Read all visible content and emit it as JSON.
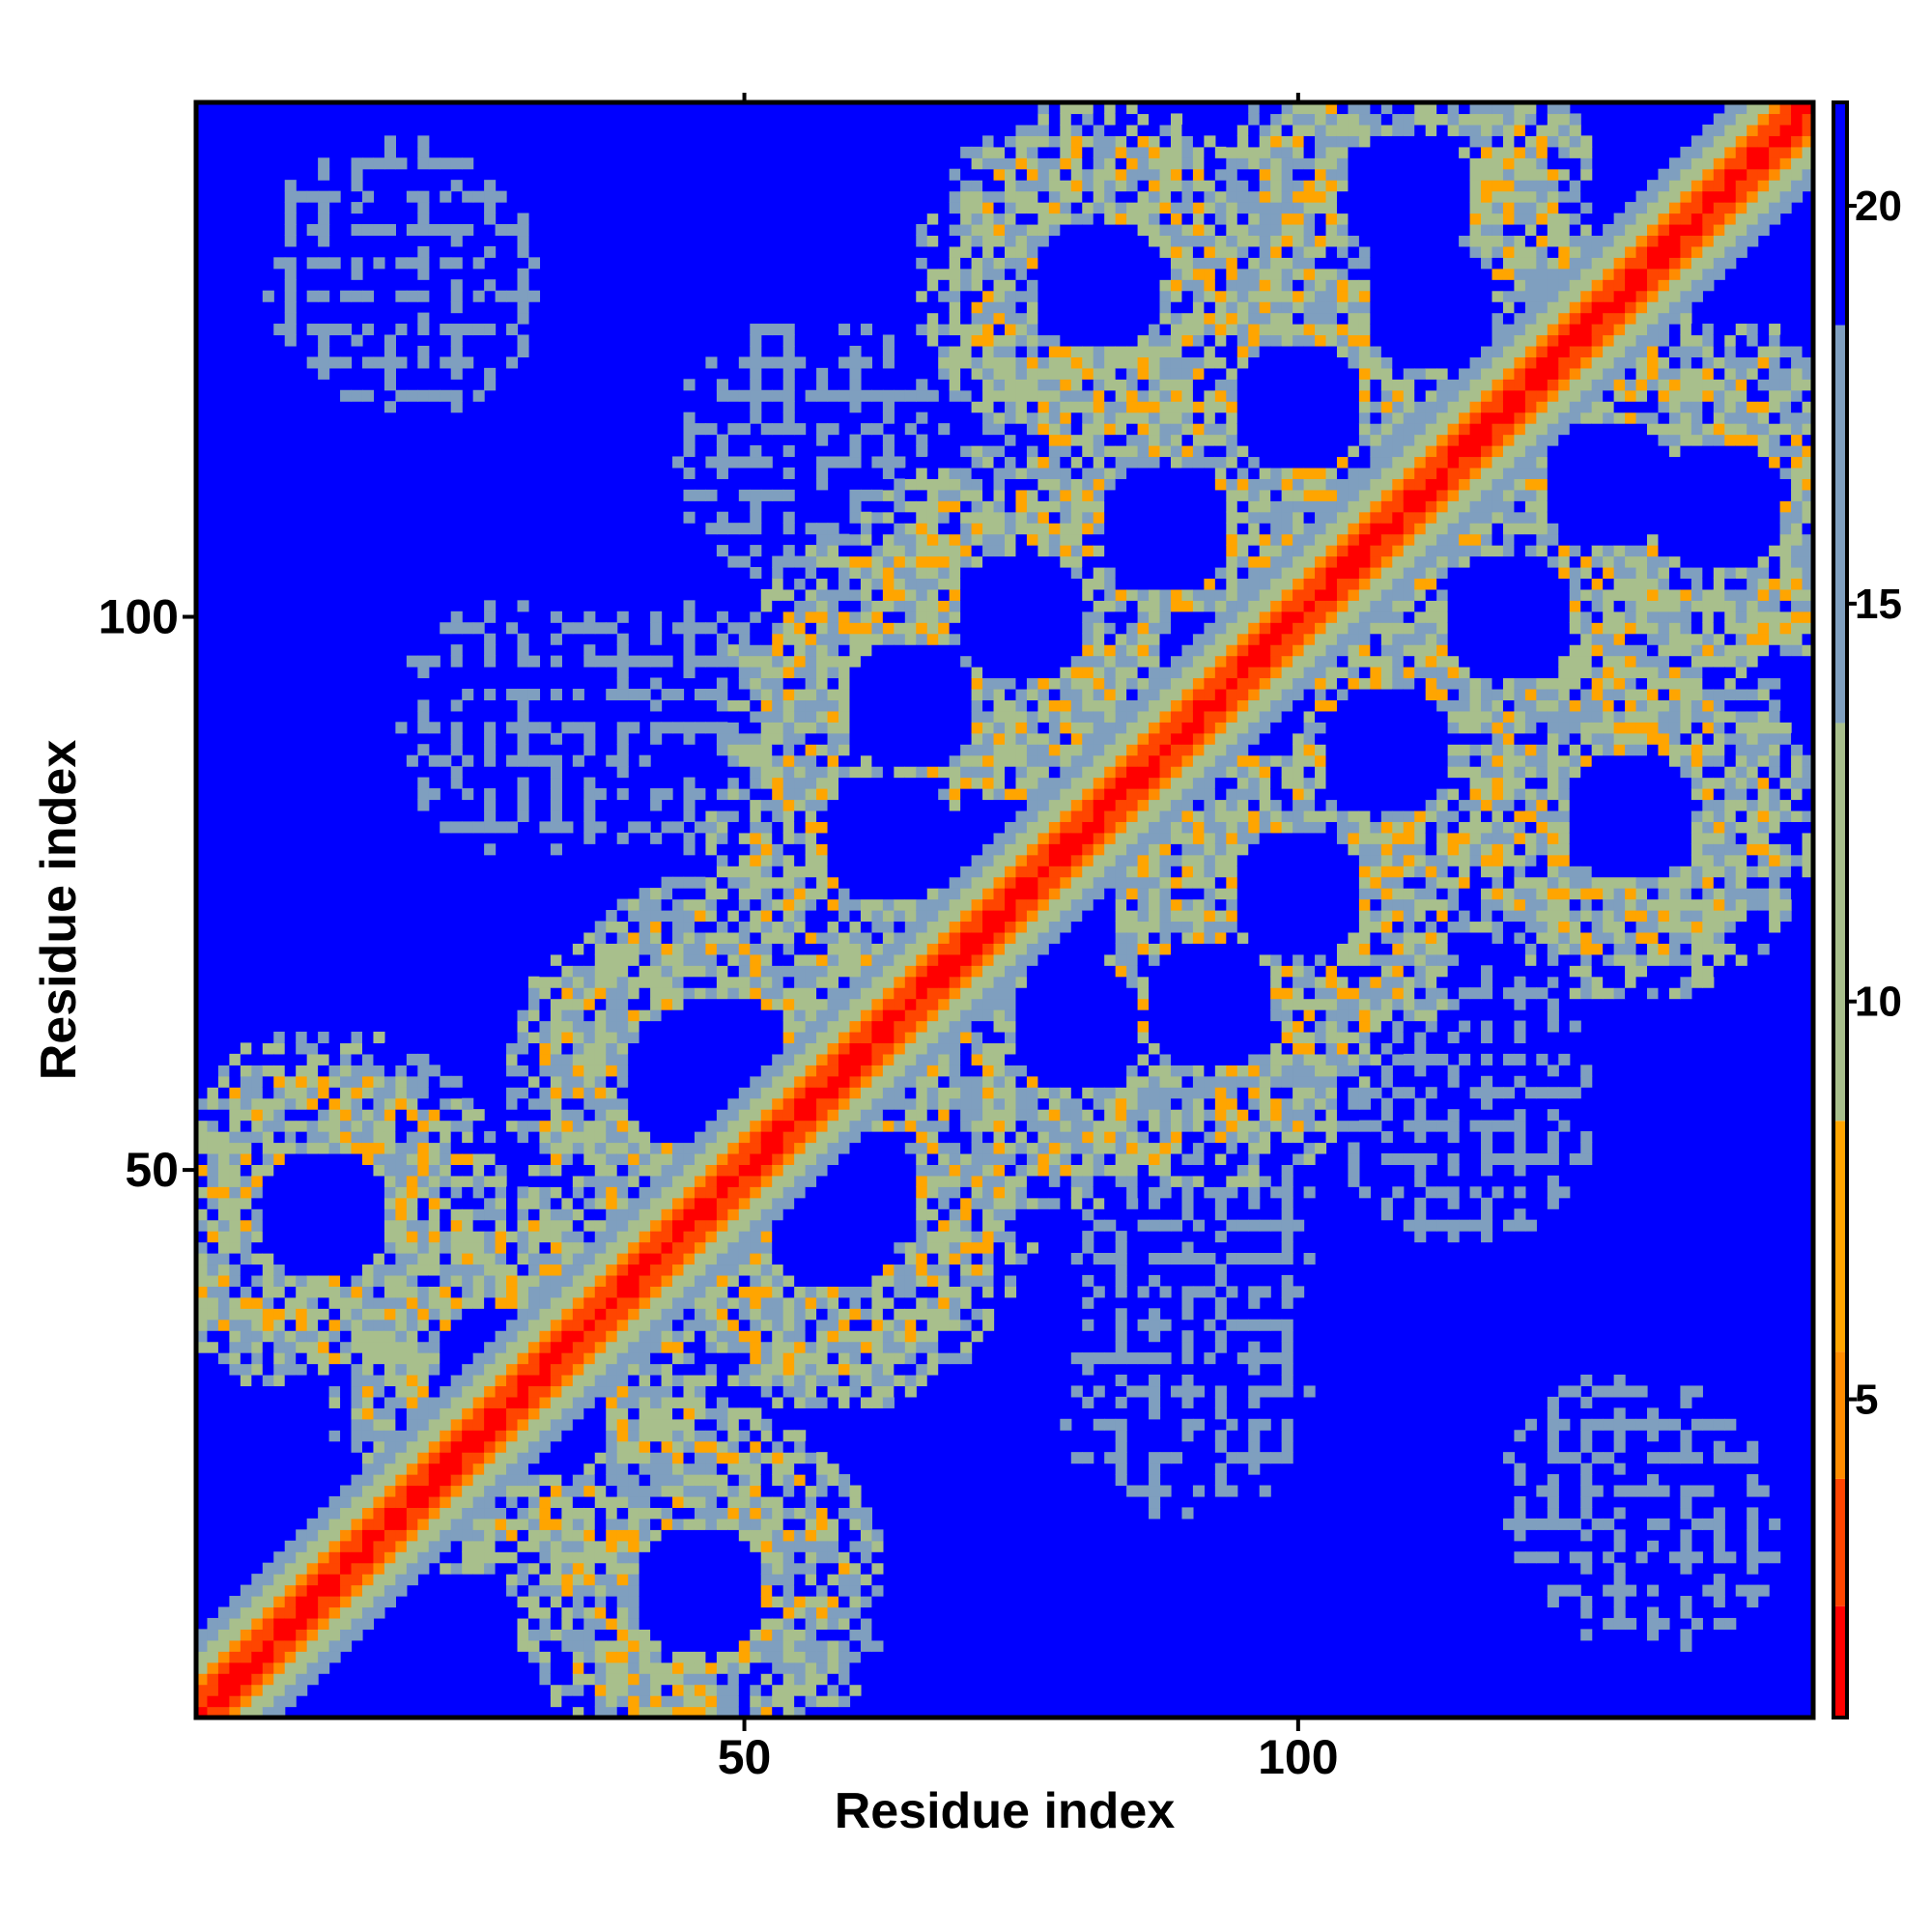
{
  "chart_data": {
    "type": "heatmap",
    "title": "",
    "xlabel": "Residue index",
    "ylabel": "Residue index",
    "n_residues": 146,
    "xlim": [
      1,
      146
    ],
    "ylim": [
      1,
      146
    ],
    "x_ticks": [
      {
        "value": 50,
        "label": "50"
      },
      {
        "value": 100,
        "label": "100"
      }
    ],
    "y_ticks": [
      {
        "value": 50,
        "label": "50"
      },
      {
        "value": 100,
        "label": "100"
      }
    ],
    "colorbar": {
      "min": 1,
      "max": 21.3,
      "ticks": [
        {
          "value": 5,
          "label": "5"
        },
        {
          "value": 10,
          "label": "10"
        },
        {
          "value": 15,
          "label": "15"
        },
        {
          "value": 20,
          "label": "20"
        }
      ]
    },
    "colors": {
      "red": "#ff0000",
      "orange_red": "#ff4500",
      "orange": "#ff8c00",
      "amber": "#ffa500",
      "sage": "#a8bf8c",
      "steel": "#7f9fbf",
      "blue": "#0000ff"
    },
    "diagonal_band_width": 7,
    "contact_blobs": [
      {
        "i": 12,
        "j": 46
      },
      {
        "i": 32,
        "j": 28
      },
      {
        "i": 48,
        "j": 60
      },
      {
        "i": 58,
        "j": 45
      },
      {
        "i": 65,
        "j": 92
      },
      {
        "i": 73,
        "j": 78
      },
      {
        "i": 80,
        "j": 63
      },
      {
        "i": 88,
        "j": 108
      },
      {
        "i": 95,
        "j": 93
      },
      {
        "i": 100,
        "j": 75
      },
      {
        "i": 112,
        "j": 128
      },
      {
        "i": 119,
        "j": 100
      },
      {
        "i": 138,
        "j": 110
      },
      {
        "i": 130,
        "j": 82
      }
    ],
    "sparse_patches": [
      {
        "i": 20,
        "j": 130
      },
      {
        "i": 45,
        "j": 90
      },
      {
        "i": 55,
        "j": 115
      },
      {
        "i": 90,
        "j": 30
      },
      {
        "i": 115,
        "j": 57
      },
      {
        "i": 132,
        "j": 18
      }
    ]
  }
}
